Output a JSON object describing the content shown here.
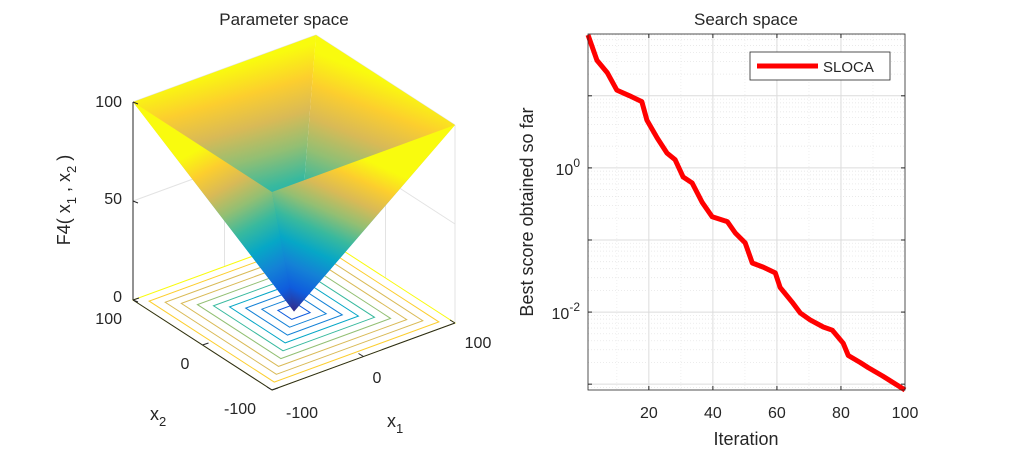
{
  "chart_data": [
    {
      "type": "surface",
      "title": "Parameter space",
      "xlabel": "x",
      "xlabel_sub": "1",
      "ylabel": "x",
      "ylabel_sub": "2",
      "zlabel_parts": [
        "F4( x",
        "1",
        " , x",
        "2",
        " )"
      ],
      "xlim": [
        -100,
        100
      ],
      "ylim": [
        -100,
        100
      ],
      "zlim": [
        0,
        100
      ],
      "x_ticks": [
        "-100",
        "0",
        "100"
      ],
      "y_ticks": [
        "100",
        "0",
        "-100"
      ],
      "z_ticks": [
        "0",
        "50",
        "100"
      ],
      "contour_levels": [
        10,
        20,
        30,
        40,
        50,
        60,
        70,
        80,
        90,
        100
      ],
      "colormap": [
        "#352a87",
        "#0f5cdd",
        "#1481d6",
        "#06a7c6",
        "#38b99e",
        "#92bf73",
        "#d9ba56",
        "#fcce2e",
        "#f9fb0e"
      ]
    },
    {
      "type": "line",
      "title": "Search space",
      "xlabel": "Iteration",
      "ylabel": "Best score obtained so far",
      "xlim": [
        1,
        100
      ],
      "ylim": [
        0.00083,
        72
      ],
      "yscale": "log",
      "grid": true,
      "legend_position": "top-right",
      "x_ticks": [
        "20",
        "40",
        "60",
        "80",
        "100"
      ],
      "y_ticks": [
        {
          "base": "10",
          "exp": "0",
          "value": 1
        },
        {
          "base": "10",
          "exp": "-2",
          "value": 0.01
        }
      ],
      "series": [
        {
          "name": "SLOCA",
          "color": "#ff0000",
          "x": [
            1,
            3.8,
            7,
            10,
            14,
            17.8,
            19.4,
            22.6,
            25.7,
            28.2,
            30.7,
            33.5,
            36.7,
            39.8,
            44.5,
            47,
            50.1,
            52.3,
            55.7,
            59.5,
            61,
            65,
            67.3,
            70.4,
            74.5,
            77.3,
            80.7,
            82.3,
            86,
            88.5,
            93,
            100
          ],
          "y": [
            70,
            31,
            21,
            12,
            10,
            8.3,
            4.6,
            2.6,
            1.6,
            1.3,
            0.75,
            0.62,
            0.33,
            0.21,
            0.18,
            0.125,
            0.091,
            0.048,
            0.042,
            0.035,
            0.022,
            0.0133,
            0.0097,
            0.0078,
            0.0062,
            0.0056,
            0.0037,
            0.0025,
            0.002,
            0.0017,
            0.0013,
            0.00083
          ]
        }
      ]
    }
  ]
}
